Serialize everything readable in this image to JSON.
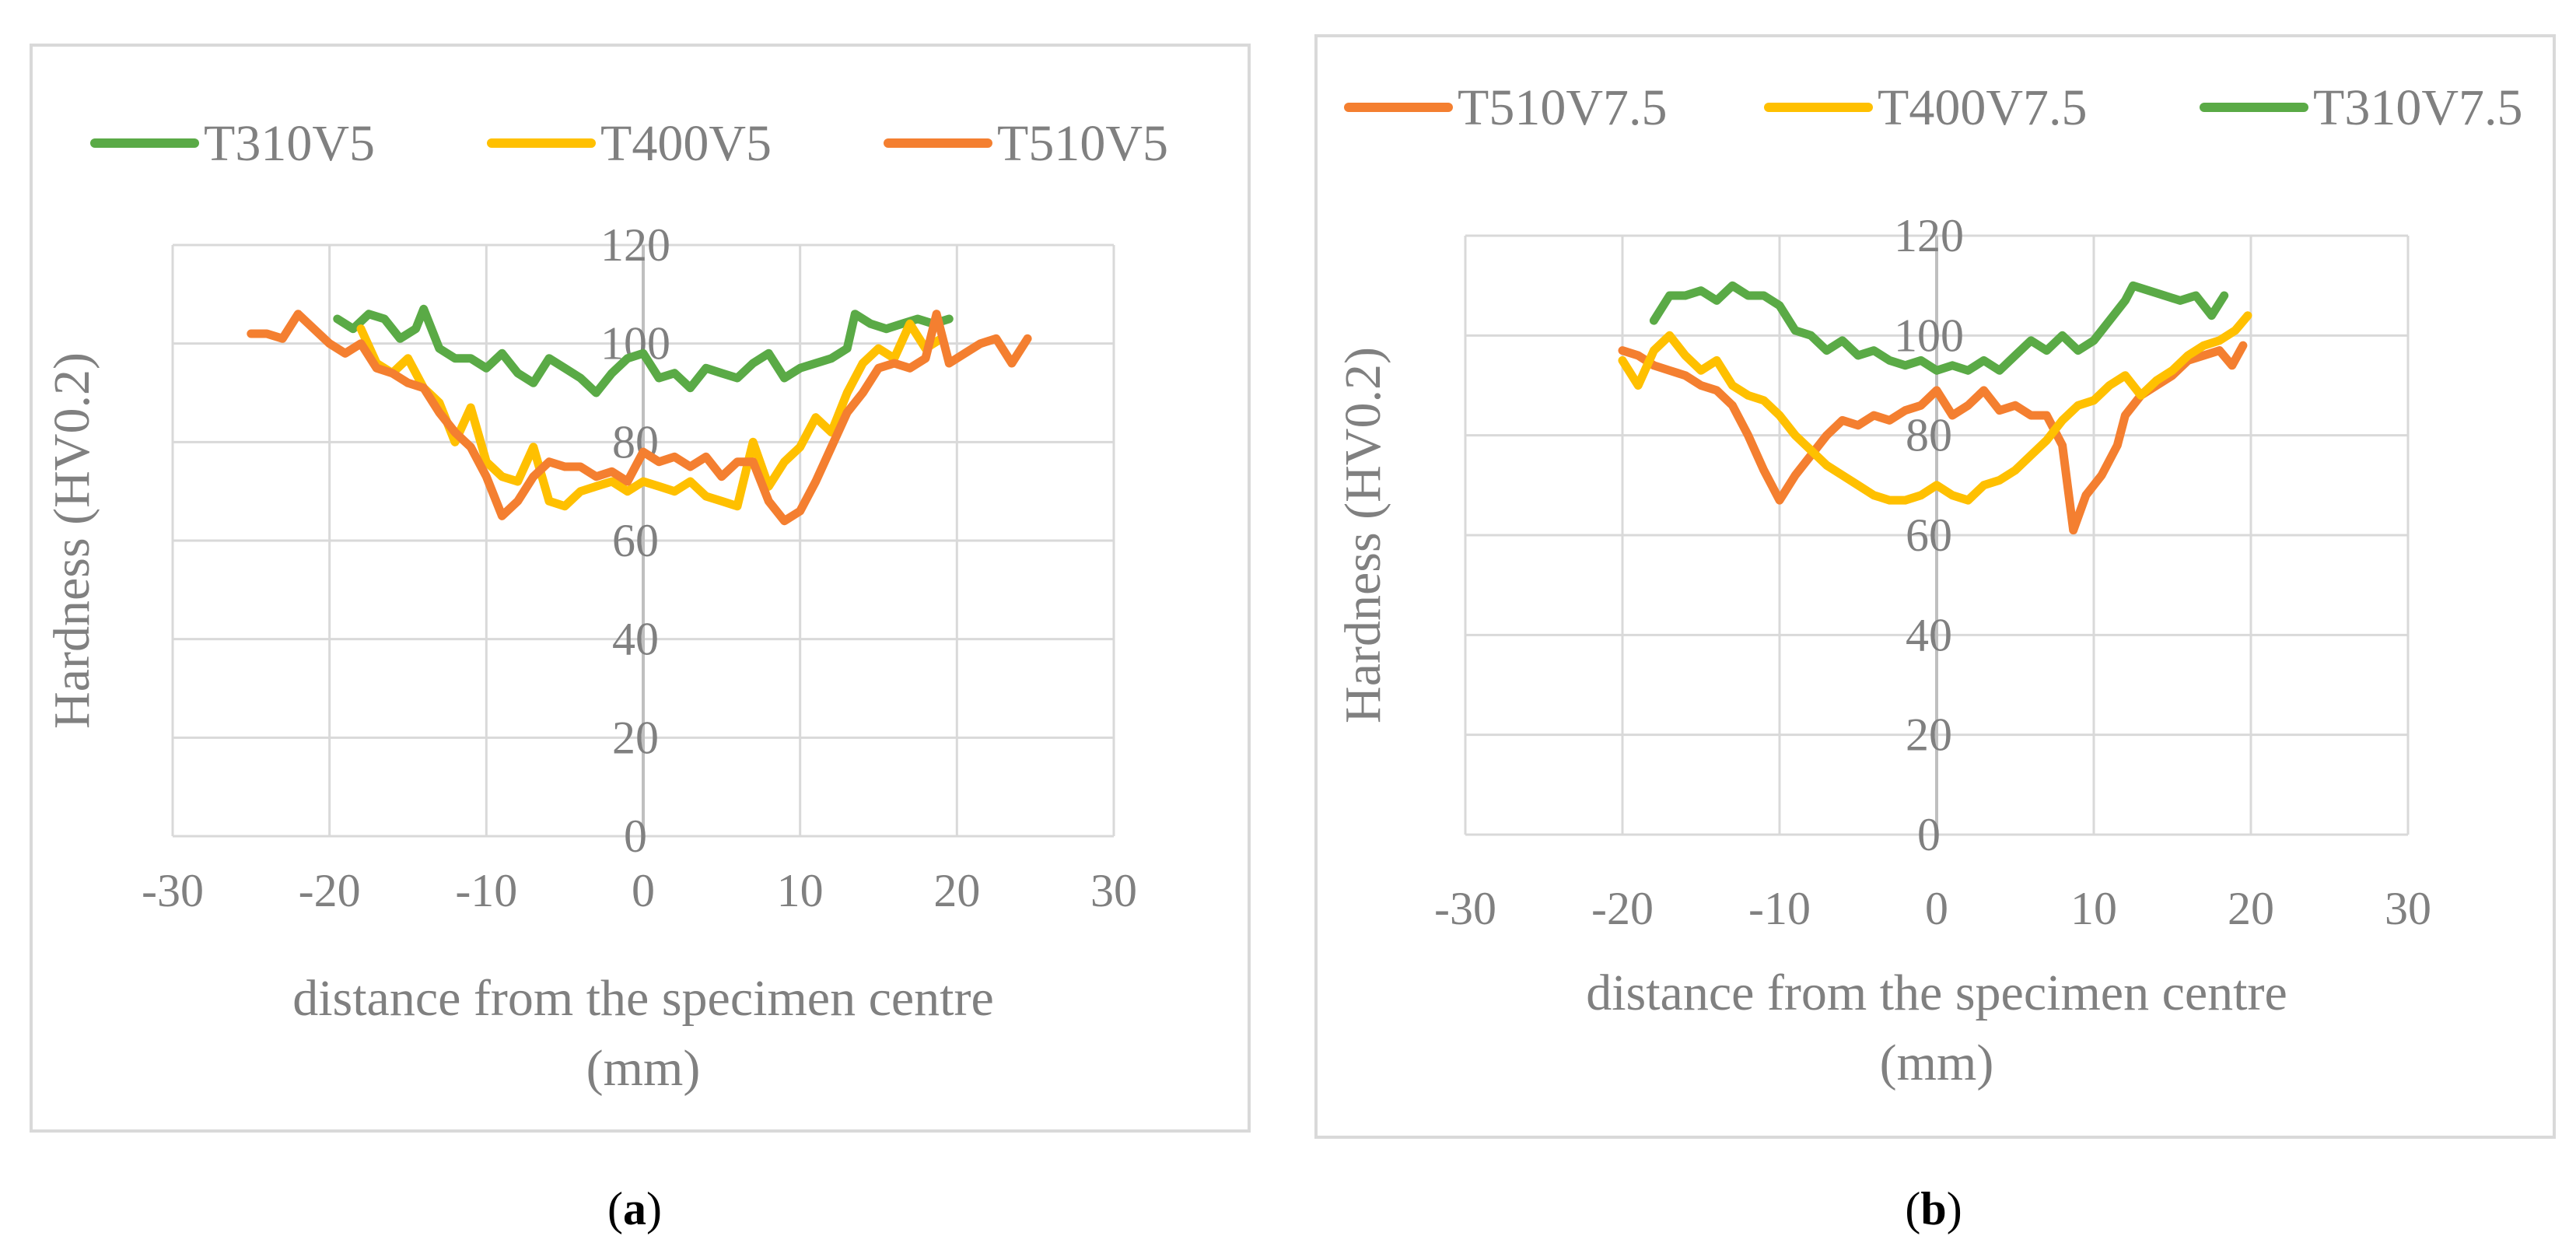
{
  "chart_data": [
    {
      "id": "a",
      "type": "line",
      "title": "",
      "xlabel_lines": [
        "distance from the specimen centre",
        "(mm)"
      ],
      "ylabel": "Hardness (HV0.2)",
      "xlim": [
        -30,
        30
      ],
      "ylim": [
        0,
        120
      ],
      "xticks": [
        -30,
        -20,
        -10,
        0,
        10,
        20,
        30
      ],
      "yticks": [
        0,
        20,
        40,
        60,
        80,
        100,
        120
      ],
      "grid": true,
      "legend_position": "top",
      "series": [
        {
          "name": "T310V5",
          "color": "#5aaa46",
          "points": [
            [
              -19.5,
              105
            ],
            [
              -18.5,
              103
            ],
            [
              -17.5,
              106
            ],
            [
              -16.5,
              105
            ],
            [
              -15.5,
              101
            ],
            [
              -14.5,
              103
            ],
            [
              -14,
              107
            ],
            [
              -13,
              99
            ],
            [
              -12,
              97
            ],
            [
              -11,
              97
            ],
            [
              -10,
              95
            ],
            [
              -9,
              98
            ],
            [
              -8,
              94
            ],
            [
              -7,
              92
            ],
            [
              -6,
              97
            ],
            [
              -5,
              95
            ],
            [
              -4,
              93
            ],
            [
              -3,
              90
            ],
            [
              -2,
              94
            ],
            [
              -1,
              97
            ],
            [
              0,
              98
            ],
            [
              1,
              93
            ],
            [
              2,
              94
            ],
            [
              3,
              91
            ],
            [
              4,
              95
            ],
            [
              5,
              94
            ],
            [
              6,
              93
            ],
            [
              7,
              96
            ],
            [
              8,
              98
            ],
            [
              9,
              93
            ],
            [
              10,
              95
            ],
            [
              11,
              96
            ],
            [
              12,
              97
            ],
            [
              13,
              99
            ],
            [
              13.5,
              106
            ],
            [
              14.5,
              104
            ],
            [
              15.5,
              103
            ],
            [
              16.5,
              104
            ],
            [
              17.5,
              105
            ],
            [
              18.5,
              104
            ],
            [
              19.5,
              105
            ]
          ]
        },
        {
          "name": "T400V5",
          "color": "#ffc000",
          "points": [
            [
              -18,
              103
            ],
            [
              -17,
              96
            ],
            [
              -16,
              94
            ],
            [
              -15,
              97
            ],
            [
              -14,
              91
            ],
            [
              -13,
              88
            ],
            [
              -12,
              80
            ],
            [
              -11,
              87
            ],
            [
              -10,
              76
            ],
            [
              -9,
              73
            ],
            [
              -8,
              72
            ],
            [
              -7,
              79
            ],
            [
              -6,
              68
            ],
            [
              -5,
              67
            ],
            [
              -4,
              70
            ],
            [
              -3,
              71
            ],
            [
              -2,
              72
            ],
            [
              -1,
              70
            ],
            [
              0,
              72
            ],
            [
              1,
              71
            ],
            [
              2,
              70
            ],
            [
              3,
              72
            ],
            [
              4,
              69
            ],
            [
              5,
              68
            ],
            [
              6,
              67
            ],
            [
              7,
              80
            ],
            [
              8,
              71
            ],
            [
              9,
              76
            ],
            [
              10,
              79
            ],
            [
              11,
              85
            ],
            [
              12,
              82
            ],
            [
              13,
              90
            ],
            [
              14,
              96
            ],
            [
              15,
              99
            ],
            [
              16,
              97
            ],
            [
              17,
              104
            ],
            [
              18,
              99
            ],
            [
              19,
              101
            ]
          ]
        },
        {
          "name": "T510V5",
          "color": "#f47f30",
          "points": [
            [
              -25,
              102
            ],
            [
              -24,
              102
            ],
            [
              -23,
              101
            ],
            [
              -22,
              106
            ],
            [
              -21,
              103
            ],
            [
              -20,
              100
            ],
            [
              -19,
              98
            ],
            [
              -18,
              100
            ],
            [
              -17,
              95
            ],
            [
              -16,
              94
            ],
            [
              -15,
              92
            ],
            [
              -14,
              91
            ],
            [
              -13,
              86
            ],
            [
              -12,
              82
            ],
            [
              -11,
              79
            ],
            [
              -10,
              73
            ],
            [
              -9,
              65
            ],
            [
              -8,
              68
            ],
            [
              -7,
              73
            ],
            [
              -6,
              76
            ],
            [
              -5,
              75
            ],
            [
              -4,
              75
            ],
            [
              -3,
              73
            ],
            [
              -2,
              74
            ],
            [
              -1,
              72
            ],
            [
              0,
              78
            ],
            [
              1,
              76
            ],
            [
              2,
              77
            ],
            [
              3,
              75
            ],
            [
              4,
              77
            ],
            [
              5,
              73
            ],
            [
              6,
              76
            ],
            [
              7,
              76
            ],
            [
              8,
              68
            ],
            [
              9,
              64
            ],
            [
              10,
              66
            ],
            [
              11,
              72
            ],
            [
              12,
              79
            ],
            [
              13,
              86
            ],
            [
              14,
              90
            ],
            [
              15,
              95
            ],
            [
              16,
              96
            ],
            [
              17,
              95
            ],
            [
              18,
              97
            ],
            [
              18.7,
              106
            ],
            [
              19.5,
              96
            ],
            [
              20.5,
              98
            ],
            [
              21.5,
              100
            ],
            [
              22.5,
              101
            ],
            [
              23.5,
              96
            ],
            [
              24.5,
              101
            ]
          ]
        }
      ]
    },
    {
      "id": "b",
      "type": "line",
      "title": "",
      "xlabel_lines": [
        "distance from the specimen centre",
        "(mm)"
      ],
      "ylabel": "Hardness (HV0.2)",
      "xlim": [
        -30,
        30
      ],
      "ylim": [
        0,
        120
      ],
      "xticks": [
        -30,
        -20,
        -10,
        0,
        10,
        20,
        30
      ],
      "yticks": [
        0,
        20,
        40,
        60,
        80,
        100,
        120
      ],
      "grid": true,
      "legend_position": "top",
      "series": [
        {
          "name": "T510V7.5",
          "color": "#f47f30",
          "points": [
            [
              -20,
              97
            ],
            [
              -19,
              96
            ],
            [
              -18,
              94
            ],
            [
              -17,
              93
            ],
            [
              -16,
              92
            ],
            [
              -15,
              90
            ],
            [
              -14,
              89
            ],
            [
              -13,
              86
            ],
            [
              -12,
              80
            ],
            [
              -11,
              73
            ],
            [
              -10,
              67
            ],
            [
              -9,
              72
            ],
            [
              -8,
              76
            ],
            [
              -7,
              80
            ],
            [
              -6,
              83
            ],
            [
              -5,
              82
            ],
            [
              -4,
              84
            ],
            [
              -3,
              83
            ],
            [
              -2,
              85
            ],
            [
              -1,
              86
            ],
            [
              0,
              89
            ],
            [
              1,
              84
            ],
            [
              2,
              86
            ],
            [
              3,
              89
            ],
            [
              4,
              85
            ],
            [
              5,
              86
            ],
            [
              6,
              84
            ],
            [
              7,
              84
            ],
            [
              8,
              78
            ],
            [
              8.7,
              61
            ],
            [
              9.5,
              68
            ],
            [
              10.5,
              72
            ],
            [
              11.5,
              78
            ],
            [
              12,
              84
            ],
            [
              13,
              88
            ],
            [
              14,
              90
            ],
            [
              15,
              92
            ],
            [
              16,
              95
            ],
            [
              17,
              96
            ],
            [
              18,
              97
            ],
            [
              18.8,
              94
            ],
            [
              19.5,
              98
            ]
          ]
        },
        {
          "name": "T400V7.5",
          "color": "#ffc000",
          "points": [
            [
              -20,
              95
            ],
            [
              -19,
              90
            ],
            [
              -18,
              97
            ],
            [
              -17,
              100
            ],
            [
              -16,
              96
            ],
            [
              -15,
              93
            ],
            [
              -14,
              95
            ],
            [
              -13,
              90
            ],
            [
              -12,
              88
            ],
            [
              -11,
              87
            ],
            [
              -10,
              84
            ],
            [
              -9,
              80
            ],
            [
              -8,
              77
            ],
            [
              -7,
              74
            ],
            [
              -6,
              72
            ],
            [
              -5,
              70
            ],
            [
              -4,
              68
            ],
            [
              -3,
              67
            ],
            [
              -2,
              67
            ],
            [
              -1,
              68
            ],
            [
              0,
              70
            ],
            [
              1,
              68
            ],
            [
              2,
              67
            ],
            [
              3,
              70
            ],
            [
              4,
              71
            ],
            [
              5,
              73
            ],
            [
              6,
              76
            ],
            [
              7,
              79
            ],
            [
              8,
              83
            ],
            [
              9,
              86
            ],
            [
              10,
              87
            ],
            [
              11,
              90
            ],
            [
              12,
              92
            ],
            [
              13,
              88
            ],
            [
              14,
              91
            ],
            [
              15,
              93
            ],
            [
              16,
              96
            ],
            [
              17,
              98
            ],
            [
              18,
              99
            ],
            [
              19,
              101
            ],
            [
              19.8,
              104
            ]
          ]
        },
        {
          "name": "T310V7.5",
          "color": "#5aaa46",
          "points": [
            [
              -18,
              103
            ],
            [
              -17,
              108
            ],
            [
              -16,
              108
            ],
            [
              -15,
              109
            ],
            [
              -14,
              107
            ],
            [
              -13,
              110
            ],
            [
              -12,
              108
            ],
            [
              -11,
              108
            ],
            [
              -10,
              106
            ],
            [
              -9,
              101
            ],
            [
              -8,
              100
            ],
            [
              -7,
              97
            ],
            [
              -6,
              99
            ],
            [
              -5,
              96
            ],
            [
              -4,
              97
            ],
            [
              -3,
              95
            ],
            [
              -2,
              94
            ],
            [
              -1,
              95
            ],
            [
              0,
              93
            ],
            [
              1,
              94
            ],
            [
              2,
              93
            ],
            [
              3,
              95
            ],
            [
              4,
              93
            ],
            [
              5,
              96
            ],
            [
              6,
              99
            ],
            [
              7,
              97
            ],
            [
              8,
              100
            ],
            [
              9,
              97
            ],
            [
              10,
              99
            ],
            [
              11,
              103
            ],
            [
              12,
              107
            ],
            [
              12.5,
              110
            ],
            [
              13.5,
              109
            ],
            [
              14.5,
              108
            ],
            [
              15.5,
              107
            ],
            [
              16.5,
              108
            ],
            [
              17.5,
              104
            ],
            [
              18.3,
              108
            ]
          ]
        }
      ]
    }
  ],
  "captions": [
    {
      "open": "(",
      "label": "a",
      "close": ")"
    },
    {
      "open": "(",
      "label": "b",
      "close": ")"
    }
  ]
}
